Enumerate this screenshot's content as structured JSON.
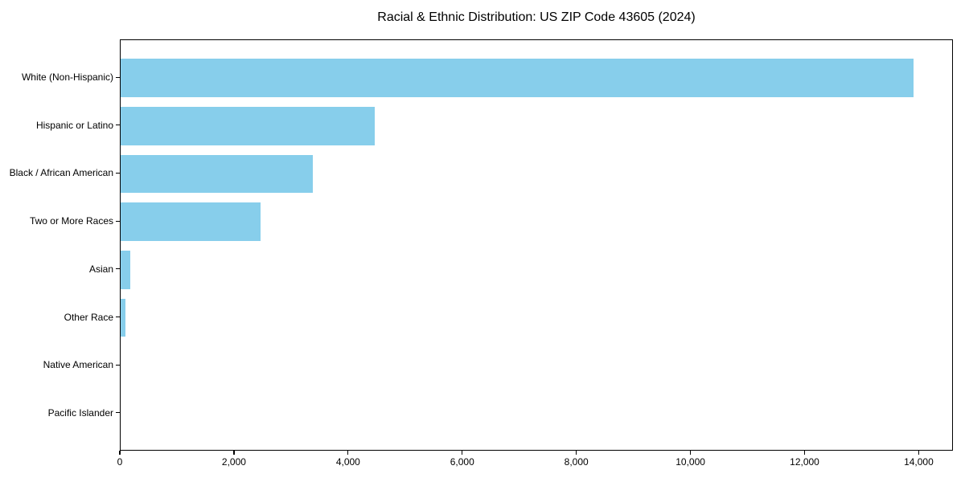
{
  "chart_data": {
    "type": "bar",
    "orientation": "horizontal",
    "title": "Racial & Ethnic Distribution: US ZIP Code 43605 (2024)",
    "categories": [
      "White (Non-Hispanic)",
      "Hispanic or Latino",
      "Black / African American",
      "Two or More Races",
      "Asian",
      "Other Race",
      "Native American",
      "Pacific Islander"
    ],
    "values": [
      13900,
      4450,
      3370,
      2450,
      170,
      90,
      0,
      0
    ],
    "xlabel": "",
    "ylabel": "",
    "xlim": [
      0,
      14600
    ],
    "x_ticks": [
      0,
      2000,
      4000,
      6000,
      8000,
      10000,
      12000,
      14000
    ],
    "x_tick_labels": [
      "0",
      "2,000",
      "4,000",
      "6,000",
      "8,000",
      "10,000",
      "12,000",
      "14,000"
    ],
    "bar_color": "#87CEEB",
    "spine_color": "#000000",
    "background_color": "#ffffff",
    "grid": false,
    "legend": null,
    "bar_height_fraction": 0.8,
    "y_margin_fraction": 0.39
  }
}
